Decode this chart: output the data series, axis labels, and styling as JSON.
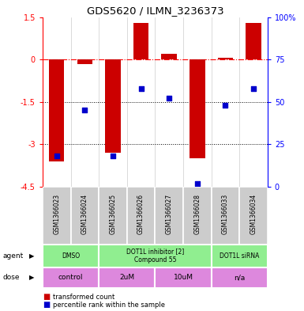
{
  "title": "GDS5620 / ILMN_3236373",
  "samples": [
    "GSM1366023",
    "GSM1366024",
    "GSM1366025",
    "GSM1366026",
    "GSM1366027",
    "GSM1366028",
    "GSM1366033",
    "GSM1366034"
  ],
  "bar_values": [
    -3.6,
    -0.15,
    -3.3,
    1.3,
    0.2,
    -3.5,
    0.05,
    1.3
  ],
  "dot_values": [
    18,
    45,
    18,
    58,
    52,
    2,
    48,
    58
  ],
  "ylim_left": [
    -4.5,
    1.5
  ],
  "ylim_right": [
    0,
    100
  ],
  "yticks_left": [
    1.5,
    0,
    -1.5,
    -3,
    -4.5
  ],
  "yticks_right": [
    100,
    75,
    50,
    25,
    0
  ],
  "hlines": [
    -1.5,
    -3.0
  ],
  "dashed_line_y": 0,
  "agent_groups": [
    {
      "label": "DMSO",
      "span": [
        0,
        2
      ]
    },
    {
      "label": "DOT1L inhibitor [2]\nCompound 55",
      "span": [
        2,
        6
      ]
    },
    {
      "label": "DOT1L siRNA",
      "span": [
        6,
        8
      ]
    }
  ],
  "dose_groups": [
    {
      "label": "control",
      "span": [
        0,
        2
      ]
    },
    {
      "label": "2uM",
      "span": [
        2,
        4
      ]
    },
    {
      "label": "10uM",
      "span": [
        4,
        6
      ]
    },
    {
      "label": "n/a",
      "span": [
        6,
        8
      ]
    }
  ],
  "bar_color": "#CC0000",
  "dot_color": "#0000CC",
  "sample_bg_color": "#CCCCCC",
  "agent_color": "#90EE90",
  "dose_color": "#DD88DD",
  "border_color": "white"
}
